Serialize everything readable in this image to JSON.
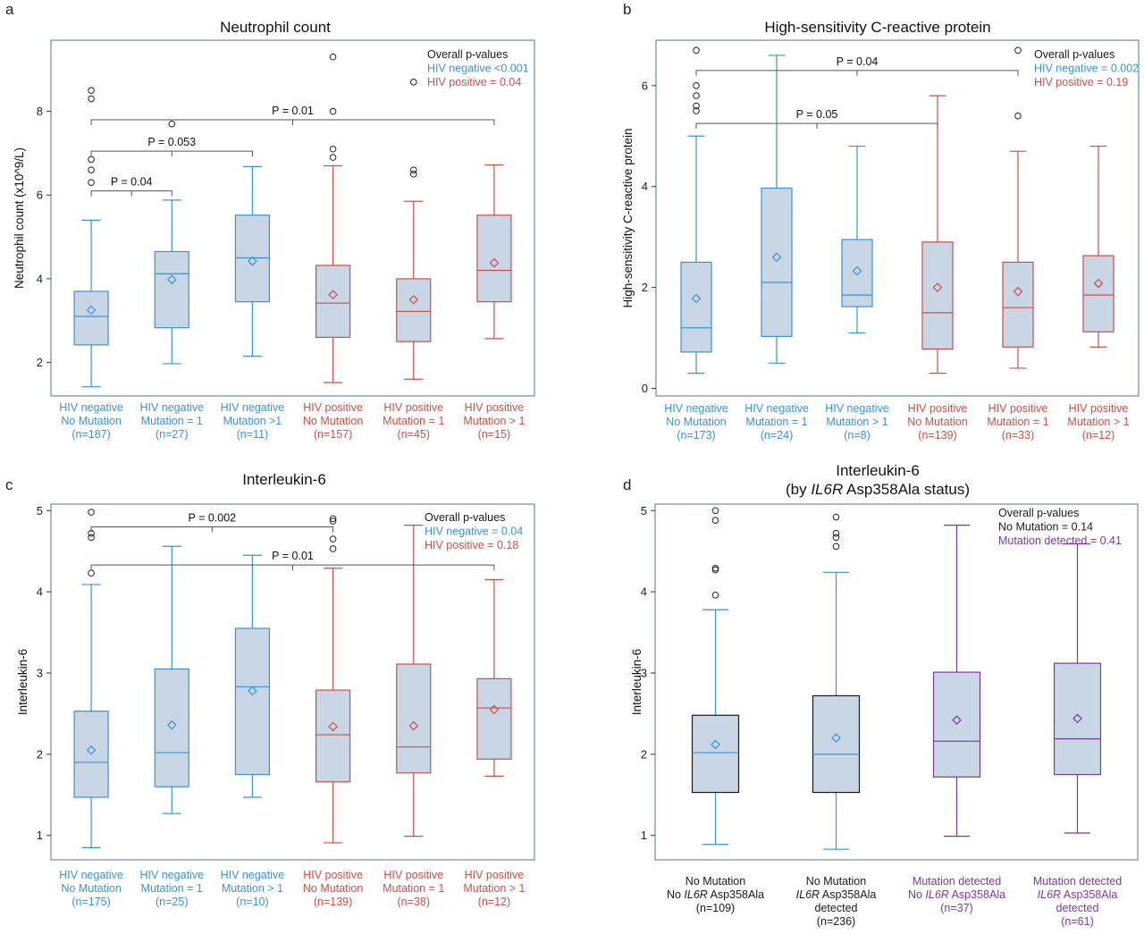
{
  "colors": {
    "neg": "#3a93d4",
    "pos": "#c9504a",
    "purple": "#7a3a9a",
    "dark": "#1a1a1a",
    "box_fill": "#c8d6e6",
    "frame": "#6e8aa2",
    "bracket": "#555555"
  },
  "chart_data": [
    {
      "panel": "a",
      "type": "box",
      "title": "Neutrophil count",
      "title2": "",
      "ylabel": "Neutrophil count (x10^9/L)",
      "ylim": [
        1.2,
        9.7
      ],
      "yticks": [
        2,
        4,
        6,
        8
      ],
      "categories": [
        {
          "lines": [
            "HIV negative",
            "No Mutation",
            "(n=187)"
          ],
          "group": "neg"
        },
        {
          "lines": [
            "HIV negative",
            "Mutation = 1",
            "(n=27)"
          ],
          "group": "neg"
        },
        {
          "lines": [
            "HIV negative",
            "Mutation >1",
            "(n=11)"
          ],
          "group": "neg"
        },
        {
          "lines": [
            "HIV positive",
            "No Mutation",
            "(n=157)"
          ],
          "group": "pos"
        },
        {
          "lines": [
            "HIV positive",
            "Mutation = 1",
            "(n=45)"
          ],
          "group": "pos"
        },
        {
          "lines": [
            "HIV positive",
            "Mutation > 1",
            "(n=15)"
          ],
          "group": "pos"
        }
      ],
      "boxes": [
        {
          "whislo": 1.42,
          "q1": 2.42,
          "med": 3.1,
          "q3": 3.7,
          "whishi": 5.4,
          "mean": 3.25,
          "fliers": [
            6.3,
            6.6,
            6.85,
            8.3,
            8.5
          ]
        },
        {
          "whislo": 1.97,
          "q1": 2.83,
          "med": 4.12,
          "q3": 4.65,
          "whishi": 5.88,
          "mean": 3.98,
          "fliers": [
            7.7
          ]
        },
        {
          "whislo": 2.15,
          "q1": 3.45,
          "med": 4.5,
          "q3": 5.52,
          "whishi": 6.68,
          "mean": 4.42,
          "fliers": []
        },
        {
          "whislo": 1.52,
          "q1": 2.6,
          "med": 3.42,
          "q3": 4.32,
          "whishi": 6.7,
          "mean": 3.62,
          "fliers": [
            6.9,
            7.1,
            8.0,
            9.3
          ]
        },
        {
          "whislo": 1.6,
          "q1": 2.5,
          "med": 3.22,
          "q3": 4.0,
          "whishi": 5.85,
          "mean": 3.5,
          "fliers": [
            6.5,
            6.6,
            8.7
          ]
        },
        {
          "whislo": 2.57,
          "q1": 3.45,
          "med": 4.2,
          "q3": 5.52,
          "whishi": 6.72,
          "mean": 4.38,
          "fliers": []
        }
      ],
      "brackets": [
        {
          "from": 0,
          "to": 1,
          "y": 6.1,
          "label": "P = 0.04"
        },
        {
          "from": 0,
          "to": 2,
          "y": 7.05,
          "label": "P = 0.053"
        },
        {
          "from": 0,
          "to": 5,
          "y": 7.8,
          "label": "P = 0.01"
        }
      ],
      "legend": [
        {
          "text": "Overall p-values",
          "group": "dark"
        },
        {
          "text": "HIV negative <0.001",
          "group": "neg"
        },
        {
          "text": "HIV positive = 0.04",
          "group": "pos"
        }
      ]
    },
    {
      "panel": "b",
      "type": "box",
      "title": "High-sensitivity C-reactive protein",
      "title2": "",
      "ylabel": "High-sensitivity C-reactive protein",
      "ylim": [
        -0.15,
        6.9
      ],
      "yticks": [
        0,
        2,
        4,
        6
      ],
      "categories": [
        {
          "lines": [
            "HIV negative",
            "No Mutation",
            "(n=173)"
          ],
          "group": "neg"
        },
        {
          "lines": [
            "HIV negative",
            "Mutation = 1",
            "(n=24)"
          ],
          "group": "neg"
        },
        {
          "lines": [
            "HIV negative",
            "Mutation > 1",
            "(n=8)"
          ],
          "group": "neg"
        },
        {
          "lines": [
            "HIV positive",
            "No Mutation",
            "(n=139)"
          ],
          "group": "pos"
        },
        {
          "lines": [
            "HIV positive",
            "Mutation = 1",
            "(n=33)"
          ],
          "group": "pos"
        },
        {
          "lines": [
            "HIV positive",
            "Mutation > 1",
            "(n=12)"
          ],
          "group": "pos"
        }
      ],
      "boxes": [
        {
          "whislo": 0.3,
          "q1": 0.72,
          "med": 1.2,
          "q3": 2.5,
          "whishi": 5.0,
          "mean": 1.78,
          "fliers": [
            5.5,
            5.6,
            5.8,
            6.0,
            6.7
          ]
        },
        {
          "whislo": 0.5,
          "q1": 1.03,
          "med": 2.1,
          "q3": 3.97,
          "whishi": 6.6,
          "mean": 2.6,
          "fliers": []
        },
        {
          "whislo": 1.1,
          "q1": 1.62,
          "med": 1.85,
          "q3": 2.95,
          "whishi": 4.8,
          "mean": 2.33,
          "fliers": []
        },
        {
          "whislo": 0.3,
          "q1": 0.78,
          "med": 1.5,
          "q3": 2.9,
          "whishi": 5.8,
          "mean": 2.0,
          "fliers": []
        },
        {
          "whislo": 0.4,
          "q1": 0.82,
          "med": 1.6,
          "q3": 2.5,
          "whishi": 4.7,
          "mean": 1.92,
          "fliers": [
            5.4,
            6.7
          ]
        },
        {
          "whislo": 0.82,
          "q1": 1.12,
          "med": 1.85,
          "q3": 2.63,
          "whishi": 4.8,
          "mean": 2.08,
          "fliers": []
        }
      ],
      "brackets": [
        {
          "from": 0,
          "to": 3,
          "y": 5.25,
          "label": "P = 0.05"
        },
        {
          "from": 0,
          "to": 4,
          "y": 6.3,
          "label": "P = 0.04"
        }
      ],
      "legend": [
        {
          "text": "Overall p-values",
          "group": "dark"
        },
        {
          "text": "HIV negative = 0.002",
          "group": "neg"
        },
        {
          "text": "HIV positive = 0.19",
          "group": "pos"
        }
      ]
    },
    {
      "panel": "c",
      "type": "box",
      "title": "Interleukin-6",
      "title2": "",
      "ylabel": "Interleukin-6",
      "ylim": [
        0.7,
        5.08
      ],
      "yticks": [
        1,
        2,
        3,
        4,
        5
      ],
      "categories": [
        {
          "lines": [
            "HIV negative",
            "No Mutation",
            "(n=175)"
          ],
          "group": "neg"
        },
        {
          "lines": [
            "HIV negative",
            "Mutation = 1",
            "(n=25)"
          ],
          "group": "neg"
        },
        {
          "lines": [
            "HIV negative",
            "Mutation > 1",
            "(n=10)"
          ],
          "group": "neg"
        },
        {
          "lines": [
            "HIV positive",
            "No Mutation",
            "(n=139)"
          ],
          "group": "pos"
        },
        {
          "lines": [
            "HIV positive",
            "Mutation = 1",
            "(n=38)"
          ],
          "group": "pos"
        },
        {
          "lines": [
            "HIV positive",
            "Mutation > 1",
            "(n=12)"
          ],
          "group": "pos"
        }
      ],
      "boxes": [
        {
          "whislo": 0.85,
          "q1": 1.47,
          "med": 1.9,
          "q3": 2.53,
          "whishi": 4.09,
          "mean": 2.05,
          "fliers": [
            4.23,
            4.67,
            4.72,
            4.98
          ]
        },
        {
          "whislo": 1.27,
          "q1": 1.6,
          "med": 2.02,
          "q3": 3.05,
          "whishi": 4.56,
          "mean": 2.36,
          "fliers": []
        },
        {
          "whislo": 1.47,
          "q1": 1.75,
          "med": 2.83,
          "q3": 3.55,
          "whishi": 4.45,
          "mean": 2.78,
          "fliers": []
        },
        {
          "whislo": 0.91,
          "q1": 1.66,
          "med": 2.24,
          "q3": 2.79,
          "whishi": 4.29,
          "mean": 2.34,
          "fliers": [
            4.53,
            4.65,
            4.87,
            4.9
          ]
        },
        {
          "whislo": 0.99,
          "q1": 1.77,
          "med": 2.09,
          "q3": 3.11,
          "whishi": 4.82,
          "mean": 2.35,
          "fliers": []
        },
        {
          "whislo": 1.73,
          "q1": 1.94,
          "med": 2.57,
          "q3": 2.93,
          "whishi": 4.15,
          "mean": 2.55,
          "fliers": []
        }
      ],
      "brackets": [
        {
          "from": 0,
          "to": 3,
          "y": 4.8,
          "label": "P = 0.002"
        },
        {
          "from": 0,
          "to": 5,
          "y": 4.33,
          "label": "P = 0.01"
        }
      ],
      "legend": [
        {
          "text": "Overall p-values",
          "group": "dark"
        },
        {
          "text": "HIV negative = 0.04",
          "group": "neg"
        },
        {
          "text": "HIV positive = 0.18",
          "group": "pos"
        }
      ]
    },
    {
      "panel": "d",
      "type": "box",
      "title": "Interleukin-6",
      "title2": "(by IL6R Asp358Ala status)",
      "ylabel": "Interleukin-6",
      "ylim": [
        0.7,
        5.08
      ],
      "yticks": [
        1,
        2,
        3,
        4,
        5
      ],
      "categories": [
        {
          "lines": [
            "No Mutation",
            "No IL6R Asp358Ala",
            "(n=109)"
          ],
          "group": "dark"
        },
        {
          "lines": [
            "No Mutation",
            "IL6R Asp358Ala",
            "detected",
            "(n=236)"
          ],
          "group": "dark"
        },
        {
          "lines": [
            "Mutation detected",
            "No IL6R Asp358Ala",
            "(n=37)"
          ],
          "group": "purple"
        },
        {
          "lines": [
            "Mutation detected",
            "IL6R Asp358Ala",
            "detected",
            "(n=61)"
          ],
          "group": "purple"
        }
      ],
      "boxes": [
        {
          "whislo": 0.89,
          "q1": 1.53,
          "med": 2.02,
          "q3": 2.48,
          "whishi": 3.78,
          "mean": 2.12,
          "fliers": [
            3.96,
            4.27,
            4.29,
            4.88,
            5.0
          ]
        },
        {
          "whislo": 0.83,
          "q1": 1.53,
          "med": 2.0,
          "q3": 2.72,
          "whishi": 4.24,
          "mean": 2.2,
          "fliers": [
            4.56,
            4.67,
            4.72,
            4.92
          ]
        },
        {
          "whislo": 0.99,
          "q1": 1.72,
          "med": 2.16,
          "q3": 3.01,
          "whishi": 4.82,
          "mean": 2.42,
          "fliers": []
        },
        {
          "whislo": 1.03,
          "q1": 1.75,
          "med": 2.19,
          "q3": 3.12,
          "whishi": 4.59,
          "mean": 2.44,
          "fliers": []
        }
      ],
      "brackets": [],
      "legend": [
        {
          "text": "Overall p-values",
          "group": "dark"
        },
        {
          "text": "No Mutation = 0.14",
          "group": "dark"
        },
        {
          "text": "Mutation detected = 0.41",
          "group": "purple"
        }
      ]
    }
  ]
}
